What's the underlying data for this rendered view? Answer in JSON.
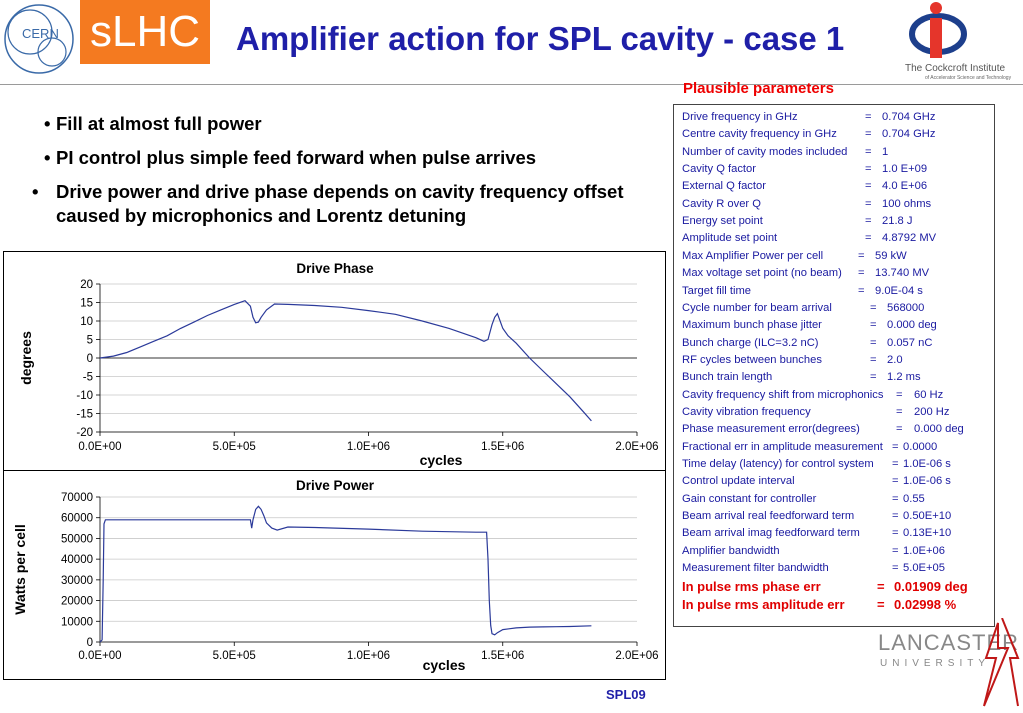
{
  "header": {
    "title": "Amplifier action for SPL cavity - case 1",
    "badge": "sLHC",
    "cern_logo_text": "CERN",
    "institute_logo_text": "The Cockcroft Institute",
    "institute_logo_subtext": "of Accelerator Science and Technology",
    "university_logo_text": "LANCASTER",
    "university_logo_subtext": "UNIVERSITY"
  },
  "bullets": [
    "Fill at almost full power",
    "PI control plus simple feed forward when pulse arrives",
    "Drive power and drive phase depends on cavity frequency offset caused by microphonics and Lorentz detuning"
  ],
  "params": {
    "title": "Plausible parameters",
    "rows": [
      {
        "label": "Drive frequency in GHz",
        "sep": "=",
        "value": "0.704 GHz"
      },
      {
        "label": "Centre cavity frequency in GHz",
        "sep": "=",
        "value": "0.704 GHz"
      },
      {
        "label": "Number of cavity modes included",
        "sep": "=",
        "value": "1"
      },
      {
        "label": "Cavity Q factor",
        "sep": "=",
        "value": "1.0 E+09"
      },
      {
        "label": "External Q factor",
        "sep": "=",
        "value": "4.0 E+06"
      },
      {
        "label": "Cavity R over Q",
        "sep": "=",
        "value": "100 ohms"
      },
      {
        "label": "Energy set point",
        "sep": "=",
        "value": "21.8 J"
      },
      {
        "label": "Amplitude set point",
        "sep": "=",
        "value": "4.8792 MV"
      },
      {
        "label": "Max Amplifier Power per cell",
        "sep": "=",
        "value": "59 kW"
      },
      {
        "label": "Max voltage set point (no beam)",
        "sep": "=",
        "value": "13.740 MV"
      },
      {
        "label": "Target fill time",
        "sep": "=",
        "value": "9.0E-04 s"
      },
      {
        "label": "Cycle number for beam arrival",
        "sep": "=",
        "value": "568000"
      },
      {
        "label": "Maximum bunch phase jitter",
        "sep": "=",
        "value": "0.000 deg"
      },
      {
        "label": "Bunch charge (ILC=3.2 nC)",
        "sep": "=",
        "value": "0.057 nC"
      },
      {
        "label": "RF cycles between bunches",
        "sep": "=",
        "value": "2.0"
      },
      {
        "label": "Bunch train length",
        "sep": "=",
        "value": "1.2 ms"
      },
      {
        "label": "Cavity frequency shift from microphonics",
        "sep": "=",
        "value": "60 Hz"
      },
      {
        "label": "Cavity vibration frequency",
        "sep": "=",
        "value": "200 Hz"
      },
      {
        "label": "Phase measurement error(degrees)",
        "sep": "=",
        "value": "0.000 deg"
      },
      {
        "label": "Fractional err in amplitude measurement",
        "sep": "=",
        "value": "0.0000"
      },
      {
        "label": "Time delay (latency) for control system",
        "sep": "=",
        "value": "1.0E-06 s"
      },
      {
        "label": "Control update interval",
        "sep": "=",
        "value": "1.0E-06 s"
      },
      {
        "label": "Gain constant for controller",
        "sep": "=",
        "value": "0.55"
      },
      {
        "label": "Beam arrival real feedforward term",
        "sep": "=",
        "value": "0.50E+10"
      },
      {
        "label": "Beam arrival imag feedforward term",
        "sep": "=",
        "value": "0.13E+10"
      },
      {
        "label": "Amplifier bandwidth",
        "sep": "=",
        "value": "1.0E+06"
      },
      {
        "label": "Measurement filter bandwidth",
        "sep": "=",
        "value": "5.0E+05"
      },
      {
        "label": "In pulse rms phase err",
        "sep": "=",
        "value": "0.01909 deg"
      },
      {
        "label": "In pulse rms amplitude err",
        "sep": "=",
        "value": "0.02998 %"
      }
    ]
  },
  "footer": "SPL09",
  "chart_data": [
    {
      "type": "line",
      "title": "Drive Phase",
      "xlabel": "cycles",
      "ylabel": "degrees",
      "xlim": [
        0,
        2000000
      ],
      "ylim": [
        -20,
        20
      ],
      "xticks": [
        "0.0E+00",
        "5.0E+05",
        "1.0E+06",
        "1.5E+06",
        "2.0E+06"
      ],
      "yticks": [
        "20",
        "15",
        "10",
        "5",
        "0",
        "-5",
        "-10",
        "-15",
        "-20"
      ],
      "grid": true,
      "series": [
        {
          "color": "#2b3a9a",
          "x": [
            0,
            50000,
            100000,
            150000,
            200000,
            250000,
            300000,
            350000,
            400000,
            450000,
            500000,
            540000,
            560000,
            570000,
            580000,
            590000,
            600000,
            620000,
            650000,
            700000,
            800000,
            900000,
            1000000,
            1100000,
            1200000,
            1300000,
            1400000,
            1430000,
            1445000,
            1460000,
            1470000,
            1480000,
            1490000,
            1500000,
            1520000,
            1550000,
            1600000,
            1650000,
            1700000,
            1750000,
            1800000,
            1830000
          ],
          "y": [
            0,
            0.5,
            1.5,
            3,
            4.5,
            6,
            8,
            9.7,
            11.5,
            13,
            14.5,
            15.5,
            14,
            11,
            9.5,
            9.7,
            11,
            13,
            14.6,
            14.5,
            14.2,
            13.7,
            12.8,
            11.8,
            10,
            8,
            5.5,
            4.5,
            5,
            9,
            11,
            12,
            10,
            8,
            6,
            4,
            0,
            -3.5,
            -7,
            -10.5,
            -14.5,
            -17
          ]
        }
      ]
    },
    {
      "type": "line",
      "title": "Drive Power",
      "xlabel": "cycles",
      "ylabel": "Watts per cell",
      "xlim": [
        0,
        2000000
      ],
      "ylim": [
        0,
        70000
      ],
      "xticks": [
        "0.0E+00",
        "5.0E+05",
        "1.0E+06",
        "1.5E+06",
        "2.0E+06"
      ],
      "yticks": [
        "70000",
        "60000",
        "50000",
        "40000",
        "30000",
        "20000",
        "10000",
        "0"
      ],
      "grid": true,
      "series": [
        {
          "color": "#2b3a9a",
          "x": [
            0,
            8000,
            12000,
            15000,
            20000,
            100000,
            300000,
            500000,
            560000,
            565000,
            570000,
            580000,
            590000,
            600000,
            610000,
            620000,
            640000,
            660000,
            700000,
            800000,
            1000000,
            1200000,
            1400000,
            1440000,
            1445000,
            1450000,
            1455000,
            1460000,
            1470000,
            1480000,
            1500000,
            1550000,
            1600000,
            1650000,
            1700000,
            1750000,
            1830000
          ],
          "y": [
            0,
            1000,
            30000,
            57000,
            59000,
            59000,
            59000,
            59000,
            59000,
            55000,
            59000,
            64000,
            65500,
            64000,
            61000,
            57500,
            55000,
            54000,
            55500,
            55300,
            54500,
            53500,
            53000,
            53000,
            40000,
            20000,
            8000,
            4000,
            3500,
            4500,
            6000,
            6800,
            7200,
            7300,
            7400,
            7500,
            7800
          ]
        }
      ]
    }
  ]
}
